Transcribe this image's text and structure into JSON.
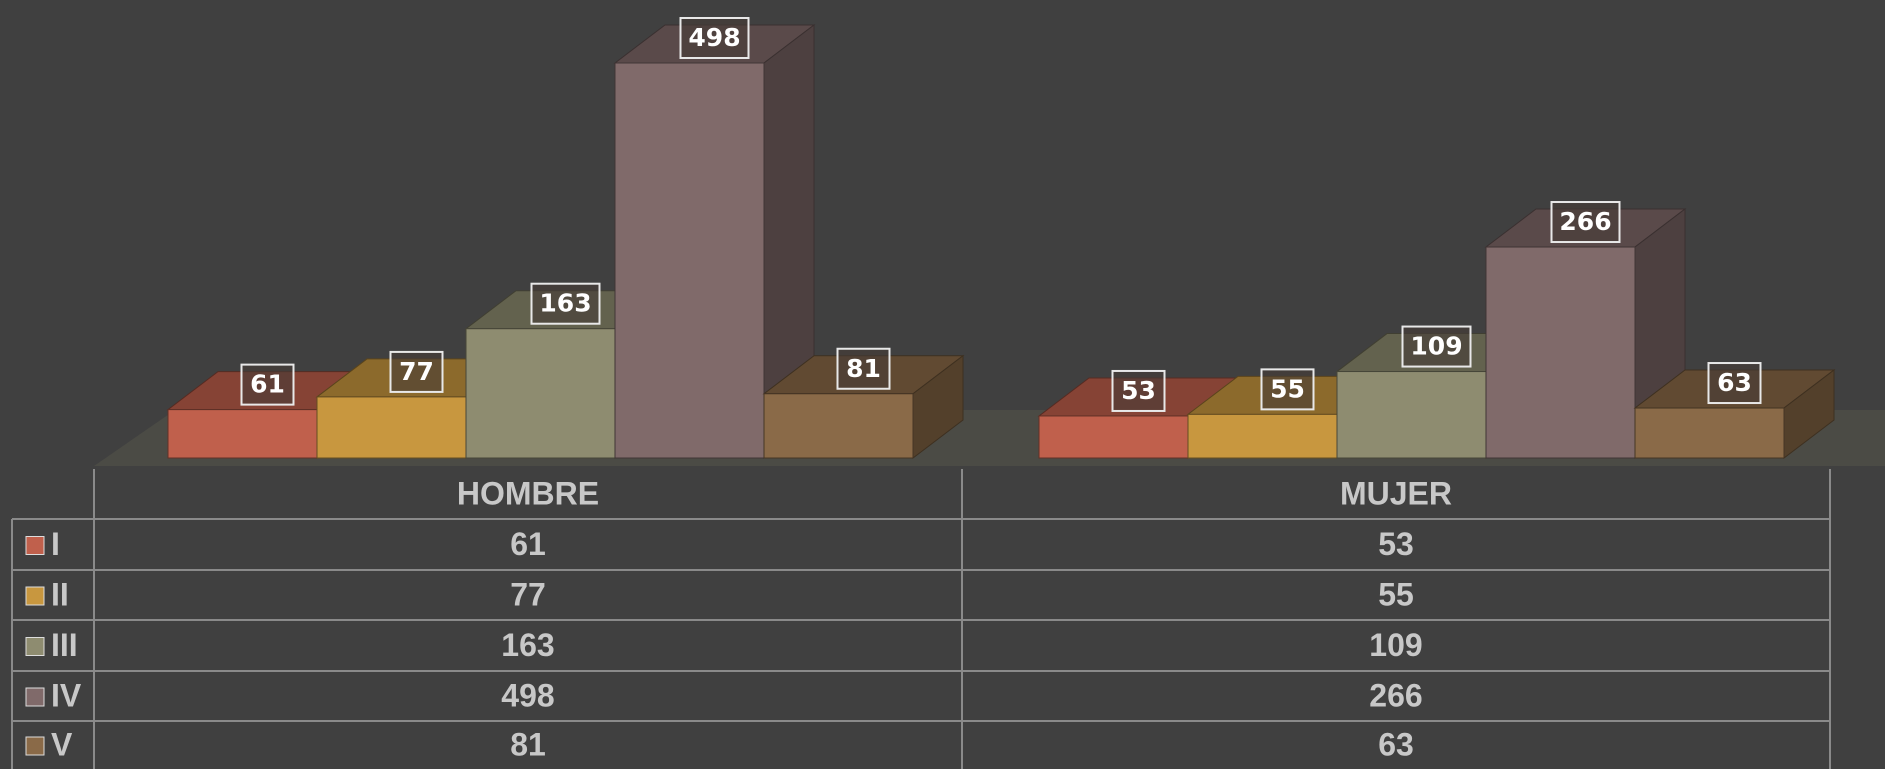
{
  "chart_data": {
    "type": "bar3d",
    "categories": [
      "HOMBRE",
      "MUJER"
    ],
    "series": [
      {
        "name": "I",
        "color": "#c0604c",
        "values": [
          61,
          53
        ]
      },
      {
        "name": "II",
        "color": "#c8973f",
        "values": [
          77,
          55
        ]
      },
      {
        "name": "III",
        "color": "#8e8c70",
        "values": [
          163,
          109
        ]
      },
      {
        "name": "IV",
        "color": "#806a6a",
        "values": [
          498,
          266
        ]
      },
      {
        "name": "V",
        "color": "#8a6a48",
        "values": [
          81,
          63
        ]
      }
    ],
    "data_table": true
  }
}
